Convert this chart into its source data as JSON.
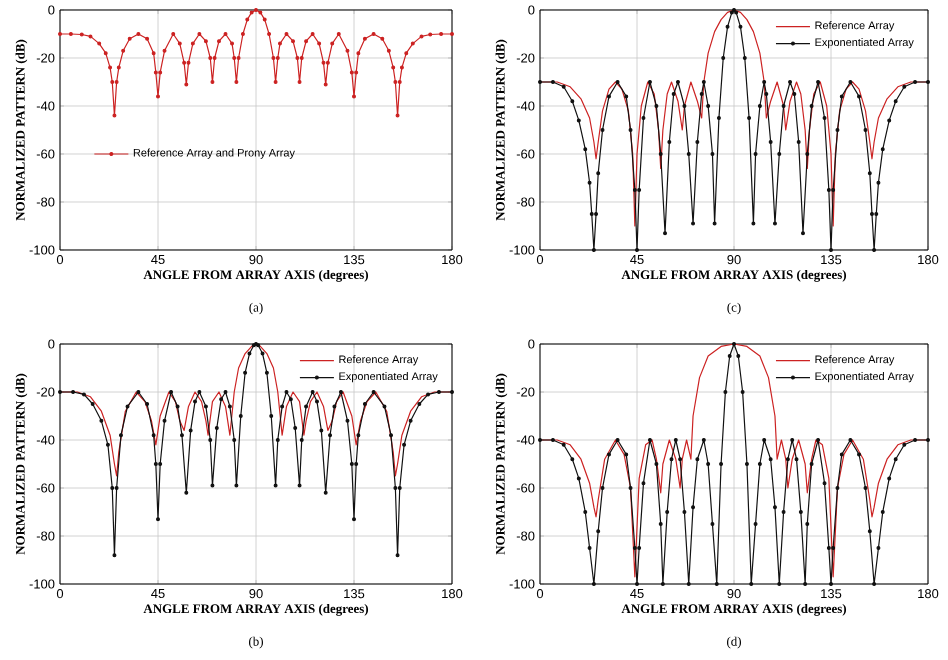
{
  "chart_data": [
    {
      "type": "line",
      "xlabel": "ANGLE FROM ARRAY AXIS (degrees)",
      "ylabel": "NORMALIZED PATTERN (dB)",
      "xlim": [
        0,
        180
      ],
      "ylim": [
        -100,
        0
      ],
      "xticks": [
        0,
        45,
        90,
        135,
        180
      ],
      "yticks": [
        -100,
        -80,
        -60,
        -40,
        -20,
        0
      ],
      "grid": true,
      "legend": "left",
      "marker": "circle",
      "annotations": [
        "(a)"
      ],
      "series": [
        {
          "name": "Reference Array and Prony Array",
          "color": "#cc2222",
          "x": [
            0,
            5,
            10,
            14,
            18,
            21,
            23,
            24,
            25,
            26,
            27,
            29,
            32,
            36,
            40,
            43,
            44,
            45,
            46,
            48,
            52,
            55,
            57,
            58,
            59,
            61,
            64,
            67,
            69,
            70,
            71,
            73,
            76,
            79,
            80,
            81,
            82,
            84,
            86,
            88,
            90,
            92,
            94,
            96,
            98,
            99,
            100,
            101,
            104,
            107,
            109,
            110,
            111,
            113,
            116,
            119,
            121,
            122,
            123,
            125,
            128,
            132,
            134,
            135,
            136,
            137,
            140,
            144,
            148,
            151,
            153,
            154,
            155,
            156,
            157,
            159,
            162,
            166,
            170,
            175,
            180
          ],
          "values": [
            -10,
            -10,
            -10.2,
            -11,
            -14,
            -18,
            -24,
            -30,
            -44,
            -30,
            -24,
            -17,
            -12,
            -10,
            -12,
            -18,
            -26,
            -36,
            -26,
            -17,
            -10,
            -14,
            -22,
            -31,
            -22,
            -14,
            -10,
            -13,
            -20,
            -30,
            -20,
            -13,
            -10,
            -14,
            -20,
            -30,
            -20,
            -10,
            -4,
            -1,
            0,
            -1,
            -4,
            -10,
            -20,
            -30,
            -20,
            -14,
            -10,
            -13,
            -20,
            -30,
            -20,
            -13,
            -10,
            -14,
            -22,
            -31,
            -22,
            -14,
            -10,
            -17,
            -26,
            -36,
            -26,
            -18,
            -12,
            -10,
            -12,
            -17,
            -24,
            -30,
            -44,
            -30,
            -24,
            -18,
            -14,
            -11,
            -10.2,
            -10,
            -10
          ]
        }
      ]
    },
    {
      "type": "line",
      "xlabel": "ANGLE FROM ARRAY AXIS (degrees)",
      "ylabel": "NORMALIZED PATTERN (dB)",
      "xlim": [
        0,
        180
      ],
      "ylim": [
        -100,
        0
      ],
      "xticks": [
        0,
        45,
        90,
        135,
        180
      ],
      "yticks": [
        -100,
        -80,
        -60,
        -40,
        -20,
        0
      ],
      "grid": true,
      "legend": "top right",
      "annotations": [
        "(c)"
      ],
      "series": [
        {
          "name": "Reference Array",
          "color": "#cc2222",
          "marker": "none",
          "x": [
            0,
            8,
            14,
            19,
            23,
            25,
            26,
            27,
            29,
            32,
            35,
            38,
            41,
            43,
            44,
            45,
            47,
            50,
            53,
            55,
            56,
            57,
            59,
            61,
            64,
            66,
            67,
            70,
            73,
            75,
            76,
            78,
            81,
            84,
            87,
            90,
            93,
            96,
            99,
            102,
            104,
            105,
            107,
            110,
            113,
            114,
            116,
            119,
            121,
            123,
            124,
            125,
            127,
            130,
            133,
            135,
            136,
            137,
            139,
            142,
            145,
            148,
            151,
            153,
            154,
            155,
            157,
            161,
            166,
            172,
            180
          ],
          "values": [
            -30,
            -30,
            -32,
            -37,
            -45,
            -55,
            -62,
            -55,
            -42,
            -33,
            -30,
            -33,
            -42,
            -60,
            -90,
            -60,
            -40,
            -30,
            -35,
            -50,
            -66,
            -50,
            -35,
            -30,
            -38,
            -50,
            -40,
            -30,
            -38,
            -45,
            -30,
            -18,
            -9,
            -4,
            -1,
            0,
            -1,
            -4,
            -9,
            -18,
            -30,
            -45,
            -38,
            -30,
            -40,
            -50,
            -38,
            -30,
            -35,
            -50,
            -66,
            -50,
            -35,
            -30,
            -40,
            -60,
            -90,
            -60,
            -42,
            -33,
            -30,
            -33,
            -42,
            -55,
            -62,
            -55,
            -45,
            -37,
            -32,
            -30,
            -30
          ]
        },
        {
          "name": "Exponentiated Array",
          "color": "#111111",
          "marker": "circle",
          "x": [
            0,
            6,
            11,
            15,
            18,
            21,
            23,
            24,
            25,
            26,
            27,
            29,
            32,
            36,
            40,
            42,
            44,
            45,
            46,
            48,
            51,
            54,
            56,
            58,
            60,
            62,
            64,
            67,
            69,
            71,
            73,
            75,
            76,
            78,
            80,
            81,
            83,
            85,
            87,
            89,
            90,
            91,
            93,
            95,
            97,
            99,
            100,
            102,
            104,
            105,
            107,
            109,
            111,
            113,
            116,
            118,
            120,
            122,
            124,
            126,
            129,
            132,
            134,
            135,
            136,
            138,
            140,
            144,
            148,
            151,
            153,
            154,
            155,
            156,
            157,
            159,
            162,
            165,
            169,
            174,
            180
          ],
          "values": [
            -30,
            -30,
            -32,
            -38,
            -46,
            -58,
            -72,
            -85,
            -100,
            -85,
            -68,
            -50,
            -36,
            -30,
            -36,
            -50,
            -75,
            -100,
            -75,
            -45,
            -30,
            -40,
            -60,
            -93,
            -55,
            -35,
            -30,
            -40,
            -60,
            -89,
            -55,
            -35,
            -30,
            -40,
            -60,
            -89,
            -45,
            -20,
            -7,
            -1,
            0,
            -1,
            -7,
            -20,
            -45,
            -89,
            -60,
            -40,
            -30,
            -35,
            -55,
            -89,
            -60,
            -40,
            -30,
            -35,
            -55,
            -93,
            -60,
            -40,
            -30,
            -45,
            -75,
            -100,
            -75,
            -50,
            -36,
            -30,
            -36,
            -50,
            -68,
            -85,
            -100,
            -85,
            -72,
            -58,
            -46,
            -38,
            -32,
            -30,
            -30
          ]
        }
      ]
    },
    {
      "type": "line",
      "xlabel": "ANGLE FROM ARRAY AXIS (degrees)",
      "ylabel": "NORMALIZED PATTERN (dB)",
      "xlim": [
        0,
        180
      ],
      "ylim": [
        -100,
        0
      ],
      "xticks": [
        0,
        45,
        90,
        135,
        180
      ],
      "yticks": [
        -100,
        -80,
        -60,
        -40,
        -20,
        0
      ],
      "grid": true,
      "legend": "top right",
      "annotations": [
        "(b)"
      ],
      "series": [
        {
          "name": "Reference Array",
          "color": "#cc2222",
          "marker": "none",
          "x": [
            0,
            8,
            14,
            19,
            23,
            25,
            26,
            27,
            30,
            35,
            39,
            42,
            44,
            46,
            50,
            53,
            55,
            57,
            59,
            62,
            65,
            67,
            68,
            70,
            73,
            76,
            78,
            80,
            82,
            85,
            88,
            90,
            92,
            95,
            98,
            100,
            102,
            104,
            107,
            110,
            112,
            113,
            115,
            118,
            121,
            123,
            125,
            127,
            130,
            134,
            136,
            138,
            141,
            145,
            150,
            153,
            154,
            155,
            157,
            161,
            166,
            172,
            180
          ],
          "values": [
            -20,
            -20,
            -22,
            -28,
            -38,
            -50,
            -55,
            -45,
            -28,
            -20,
            -24,
            -32,
            -42,
            -30,
            -20,
            -24,
            -32,
            -36,
            -26,
            -20,
            -24,
            -32,
            -38,
            -24,
            -20,
            -26,
            -38,
            -20,
            -10,
            -4,
            -1,
            0,
            -1,
            -4,
            -10,
            -20,
            -38,
            -26,
            -20,
            -24,
            -38,
            -32,
            -24,
            -20,
            -26,
            -36,
            -32,
            -24,
            -20,
            -30,
            -42,
            -32,
            -24,
            -20,
            -28,
            -45,
            -55,
            -50,
            -38,
            -28,
            -22,
            -20,
            -20
          ]
        },
        {
          "name": "Exponentiated Array",
          "color": "#111111",
          "marker": "circle",
          "x": [
            0,
            6,
            11,
            15,
            19,
            22,
            24,
            25,
            26,
            28,
            31,
            36,
            40,
            43,
            44,
            45,
            46,
            48,
            51,
            54,
            56,
            58,
            60,
            62,
            64,
            67,
            69,
            70,
            72,
            74,
            76,
            78,
            80,
            81,
            83,
            85,
            87,
            89,
            90,
            91,
            93,
            95,
            97,
            99,
            100,
            102,
            104,
            106,
            108,
            110,
            111,
            113,
            116,
            118,
            120,
            122,
            124,
            126,
            129,
            132,
            134,
            135,
            136,
            137,
            140,
            144,
            149,
            152,
            154,
            155,
            156,
            158,
            161,
            165,
            169,
            174,
            180
          ],
          "values": [
            -20,
            -20,
            -21,
            -25,
            -32,
            -42,
            -60,
            -88,
            -60,
            -38,
            -26,
            -20,
            -25,
            -38,
            -50,
            -73,
            -50,
            -32,
            -20,
            -26,
            -38,
            -62,
            -36,
            -24,
            -20,
            -26,
            -40,
            -59,
            -35,
            -23,
            -20,
            -26,
            -40,
            -59,
            -30,
            -12,
            -4,
            -0.5,
            0,
            -0.5,
            -4,
            -12,
            -30,
            -59,
            -40,
            -26,
            -20,
            -23,
            -35,
            -59,
            -40,
            -26,
            -20,
            -24,
            -36,
            -62,
            -38,
            -26,
            -20,
            -32,
            -50,
            -73,
            -50,
            -38,
            -25,
            -20,
            -26,
            -38,
            -60,
            -88,
            -60,
            -42,
            -32,
            -25,
            -21,
            -20,
            -20
          ]
        }
      ]
    },
    {
      "type": "line",
      "xlabel": "ANGLE FROM ARRAY AXIS (degrees)",
      "ylabel": "NORMALIZED PATTERN (dB)",
      "xlim": [
        0,
        180
      ],
      "ylim": [
        -100,
        0
      ],
      "xticks": [
        0,
        45,
        90,
        135,
        180
      ],
      "yticks": [
        -100,
        -80,
        -60,
        -40,
        -20,
        0
      ],
      "grid": true,
      "legend": "top right",
      "annotations": [
        "(d)"
      ],
      "series": [
        {
          "name": "Reference Array",
          "color": "#cc2222",
          "marker": "none",
          "x": [
            0,
            8,
            14,
            19,
            23,
            25,
            26,
            27,
            30,
            35,
            39,
            42,
            44,
            46,
            49,
            52,
            54,
            56,
            57,
            60,
            63,
            65,
            66,
            68,
            70,
            71,
            74,
            78,
            84,
            90,
            96,
            102,
            106,
            109,
            110,
            112,
            114,
            115,
            117,
            120,
            123,
            124,
            126,
            128,
            131,
            134,
            136,
            138,
            141,
            145,
            150,
            153,
            154,
            155,
            157,
            161,
            166,
            172,
            180
          ],
          "values": [
            -40,
            -40,
            -42,
            -48,
            -58,
            -68,
            -72,
            -65,
            -48,
            -40,
            -46,
            -60,
            -97,
            -56,
            -42,
            -40,
            -48,
            -62,
            -50,
            -40,
            -48,
            -60,
            -48,
            -40,
            -48,
            -30,
            -14,
            -5,
            -1,
            0,
            -1,
            -5,
            -14,
            -30,
            -48,
            -40,
            -48,
            -60,
            -48,
            -40,
            -50,
            -62,
            -48,
            -40,
            -42,
            -56,
            -97,
            -60,
            -46,
            -40,
            -48,
            -65,
            -72,
            -68,
            -58,
            -48,
            -42,
            -40,
            -40
          ]
        },
        {
          "name": "Exponentiated Array",
          "color": "#111111",
          "marker": "circle",
          "x": [
            0,
            6,
            11,
            15,
            18,
            21,
            23,
            25,
            27,
            29,
            32,
            36,
            40,
            42,
            44,
            45,
            46,
            48,
            51,
            54,
            56,
            57,
            59,
            61,
            63,
            65,
            67,
            69,
            71,
            73,
            76,
            78,
            80,
            82,
            84,
            86,
            88,
            90,
            92,
            94,
            96,
            98,
            100,
            102,
            104,
            107,
            109,
            111,
            113,
            115,
            117,
            119,
            121,
            123,
            124,
            126,
            129,
            132,
            134,
            135,
            136,
            138,
            140,
            144,
            148,
            151,
            153,
            155,
            157,
            159,
            162,
            165,
            169,
            174,
            180
          ],
          "values": [
            -40,
            -40,
            -42,
            -48,
            -56,
            -70,
            -85,
            -100,
            -78,
            -60,
            -46,
            -40,
            -46,
            -60,
            -85,
            -100,
            -85,
            -58,
            -40,
            -50,
            -75,
            -100,
            -70,
            -48,
            -40,
            -48,
            -70,
            -100,
            -68,
            -48,
            -40,
            -50,
            -75,
            -100,
            -50,
            -20,
            -5,
            0,
            -5,
            -20,
            -50,
            -100,
            -75,
            -50,
            -40,
            -48,
            -68,
            -100,
            -70,
            -48,
            -40,
            -48,
            -70,
            -100,
            -75,
            -50,
            -40,
            -58,
            -85,
            -100,
            -85,
            -60,
            -46,
            -40,
            -46,
            -60,
            -78,
            -100,
            -85,
            -70,
            -56,
            -48,
            -42,
            -40,
            -40
          ]
        }
      ]
    }
  ]
}
